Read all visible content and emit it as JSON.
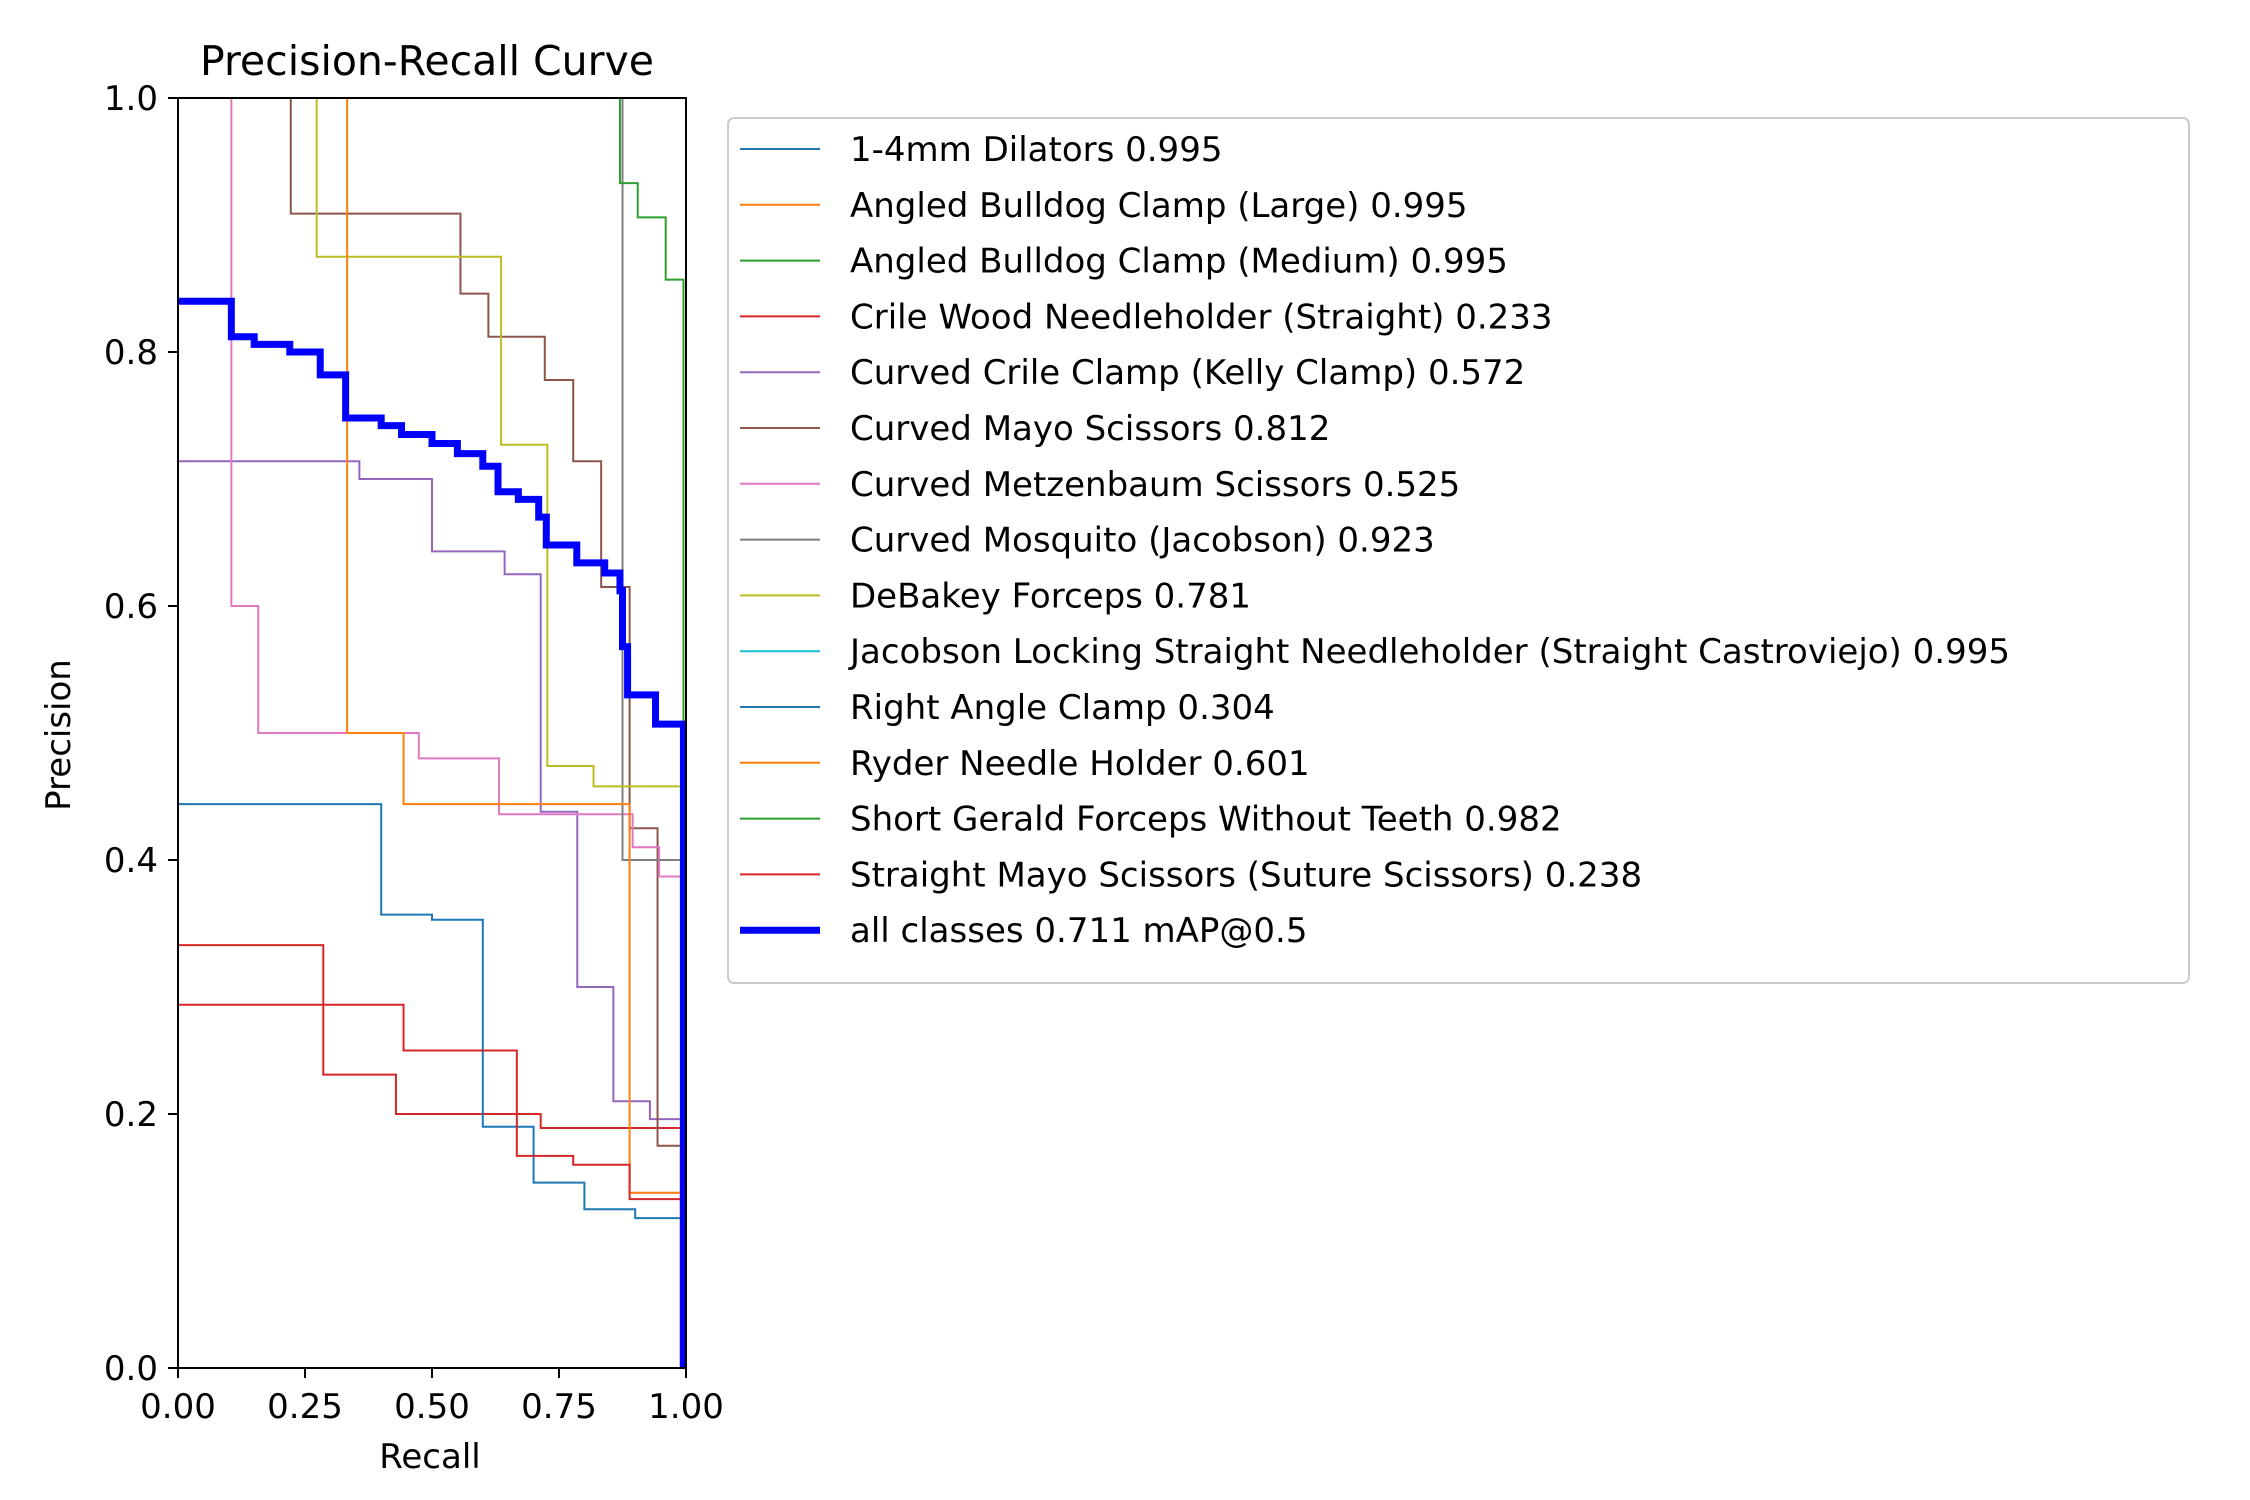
{
  "chart_data": {
    "type": "line",
    "title": "Precision-Recall Curve",
    "xlabel": "Recall",
    "ylabel": "Precision",
    "xlim": [
      0,
      1
    ],
    "ylim": [
      0,
      1
    ],
    "xticks": [
      "0.00",
      "0.25",
      "0.50",
      "0.75",
      "1.00"
    ],
    "yticks": [
      "0.0",
      "0.2",
      "0.4",
      "0.6",
      "0.8",
      "1.0"
    ],
    "grid": false,
    "legend_position": "outside-right",
    "series": [
      {
        "name": "1-4mm Dilators 0.995",
        "color": "#1f77b4",
        "width": 2,
        "points": [
          [
            1,
            1
          ],
          [
            1,
            0
          ]
        ]
      },
      {
        "name": "Angled Bulldog Clamp (Large) 0.995",
        "color": "#ff7f0e",
        "width": 2,
        "points": [
          [
            0,
            1
          ],
          [
            1,
            1
          ],
          [
            1,
            0
          ]
        ]
      },
      {
        "name": "Angled Bulldog Clamp (Medium) 0.995",
        "color": "#2ca02c",
        "width": 2,
        "points": [
          [
            0,
            1
          ],
          [
            1,
            1
          ],
          [
            1,
            0
          ]
        ]
      },
      {
        "name": "Crile Wood Needleholder (Straight) 0.233",
        "color": "#d62728",
        "width": 2,
        "points": [
          [
            0,
            0.333
          ],
          [
            0.286,
            0.333
          ],
          [
            0.286,
            0.231
          ],
          [
            0.429,
            0.231
          ],
          [
            0.429,
            0.2
          ],
          [
            0.714,
            0.2
          ],
          [
            0.714,
            0.189
          ],
          [
            0.99,
            0.189
          ],
          [
            0.99,
            0
          ]
        ]
      },
      {
        "name": "Curved Crile Clamp (Kelly Clamp) 0.572",
        "color": "#9467bd",
        "width": 2,
        "points": [
          [
            0,
            0.714
          ],
          [
            0.357,
            0.714
          ],
          [
            0.357,
            0.7
          ],
          [
            0.5,
            0.7
          ],
          [
            0.5,
            0.643
          ],
          [
            0.643,
            0.643
          ],
          [
            0.643,
            0.625
          ],
          [
            0.714,
            0.625
          ],
          [
            0.714,
            0.438
          ],
          [
            0.786,
            0.438
          ],
          [
            0.786,
            0.3
          ],
          [
            0.857,
            0.3
          ],
          [
            0.857,
            0.21
          ],
          [
            0.929,
            0.21
          ],
          [
            0.929,
            0.196
          ],
          [
            0.99,
            0.196
          ],
          [
            0.99,
            0
          ]
        ]
      },
      {
        "name": "Curved Mayo Scissors 0.812",
        "color": "#8c564b",
        "width": 2,
        "points": [
          [
            0.222,
            1
          ],
          [
            0.222,
            0.909
          ],
          [
            0.556,
            0.909
          ],
          [
            0.556,
            0.846
          ],
          [
            0.611,
            0.846
          ],
          [
            0.611,
            0.812
          ],
          [
            0.722,
            0.812
          ],
          [
            0.722,
            0.778
          ],
          [
            0.778,
            0.778
          ],
          [
            0.778,
            0.714
          ],
          [
            0.833,
            0.714
          ],
          [
            0.833,
            0.615
          ],
          [
            0.889,
            0.615
          ],
          [
            0.889,
            0.425
          ],
          [
            0.944,
            0.425
          ],
          [
            0.944,
            0.175
          ],
          [
            0.99,
            0.175
          ],
          [
            0.99,
            0
          ]
        ]
      },
      {
        "name": "Curved Metzenbaum Scissors 0.525",
        "color": "#e377c2",
        "width": 2,
        "points": [
          [
            0.105,
            1
          ],
          [
            0.105,
            0.6
          ],
          [
            0.158,
            0.6
          ],
          [
            0.158,
            0.5
          ],
          [
            0.474,
            0.5
          ],
          [
            0.474,
            0.48
          ],
          [
            0.632,
            0.48
          ],
          [
            0.632,
            0.436
          ],
          [
            0.895,
            0.436
          ],
          [
            0.895,
            0.41
          ],
          [
            0.947,
            0.41
          ],
          [
            0.947,
            0.387
          ],
          [
            0.99,
            0.387
          ],
          [
            0.99,
            0
          ]
        ]
      },
      {
        "name": "Curved Mosquito (Jacobson) 0.923",
        "color": "#7f7f7f",
        "width": 2,
        "points": [
          [
            0.875,
            1
          ],
          [
            0.875,
            0.4
          ],
          [
            0.99,
            0.4
          ],
          [
            0.99,
            0
          ]
        ]
      },
      {
        "name": "DeBakey Forceps 0.781",
        "color": "#bcbd22",
        "width": 2,
        "points": [
          [
            0.273,
            1
          ],
          [
            0.273,
            0.875
          ],
          [
            0.636,
            0.875
          ],
          [
            0.636,
            0.727
          ],
          [
            0.727,
            0.727
          ],
          [
            0.727,
            0.474
          ],
          [
            0.818,
            0.474
          ],
          [
            0.818,
            0.458
          ],
          [
            0.99,
            0.458
          ],
          [
            0.99,
            0
          ]
        ]
      },
      {
        "name": "Jacobson Locking Straight Needleholder (Straight Castroviejo) 0.995",
        "color": "#17becf",
        "width": 2,
        "points": [
          [
            0,
            1
          ],
          [
            1,
            1
          ],
          [
            1,
            0
          ]
        ]
      },
      {
        "name": "Right Angle Clamp 0.304",
        "color": "#1f77b4",
        "width": 2,
        "points": [
          [
            0,
            0.444
          ],
          [
            0.4,
            0.444
          ],
          [
            0.4,
            0.357
          ],
          [
            0.5,
            0.357
          ],
          [
            0.5,
            0.353
          ],
          [
            0.6,
            0.353
          ],
          [
            0.6,
            0.19
          ],
          [
            0.7,
            0.19
          ],
          [
            0.7,
            0.146
          ],
          [
            0.8,
            0.146
          ],
          [
            0.8,
            0.125
          ],
          [
            0.9,
            0.125
          ],
          [
            0.9,
            0.118
          ],
          [
            0.99,
            0.118
          ],
          [
            0.99,
            0
          ]
        ]
      },
      {
        "name": "Ryder Needle Holder 0.601",
        "color": "#ff7f0e",
        "width": 2,
        "points": [
          [
            0.333,
            1
          ],
          [
            0.333,
            0.5
          ],
          [
            0.444,
            0.5
          ],
          [
            0.444,
            0.444
          ],
          [
            0.889,
            0.444
          ],
          [
            0.889,
            0.138
          ],
          [
            0.99,
            0.138
          ],
          [
            0.99,
            0
          ]
        ]
      },
      {
        "name": "Short Gerald Forceps Without Teeth 0.982",
        "color": "#2ca02c",
        "width": 2,
        "points": [
          [
            0.87,
            1
          ],
          [
            0.87,
            0.933
          ],
          [
            0.905,
            0.933
          ],
          [
            0.905,
            0.906
          ],
          [
            0.96,
            0.906
          ],
          [
            0.96,
            0.857
          ],
          [
            0.995,
            0.857
          ],
          [
            0.995,
            0
          ]
        ]
      },
      {
        "name": "Straight Mayo Scissors (Suture Scissors) 0.238",
        "color": "#d62728",
        "width": 2,
        "points": [
          [
            0,
            0.286
          ],
          [
            0.444,
            0.286
          ],
          [
            0.444,
            0.25
          ],
          [
            0.667,
            0.25
          ],
          [
            0.667,
            0.167
          ],
          [
            0.778,
            0.167
          ],
          [
            0.778,
            0.16
          ],
          [
            0.889,
            0.16
          ],
          [
            0.889,
            0.133
          ],
          [
            0.99,
            0.133
          ],
          [
            0.99,
            0
          ]
        ]
      },
      {
        "name": "all classes 0.711 mAP@0.5",
        "color": "#0000ff",
        "width": 7,
        "points": [
          [
            0,
            0.84
          ],
          [
            0.105,
            0.84
          ],
          [
            0.105,
            0.812
          ],
          [
            0.15,
            0.812
          ],
          [
            0.15,
            0.806
          ],
          [
            0.22,
            0.806
          ],
          [
            0.22,
            0.8
          ],
          [
            0.28,
            0.8
          ],
          [
            0.28,
            0.782
          ],
          [
            0.33,
            0.782
          ],
          [
            0.33,
            0.748
          ],
          [
            0.4,
            0.748
          ],
          [
            0.4,
            0.742
          ],
          [
            0.44,
            0.742
          ],
          [
            0.44,
            0.735
          ],
          [
            0.5,
            0.735
          ],
          [
            0.5,
            0.728
          ],
          [
            0.55,
            0.728
          ],
          [
            0.55,
            0.72
          ],
          [
            0.6,
            0.72
          ],
          [
            0.6,
            0.71
          ],
          [
            0.63,
            0.71
          ],
          [
            0.63,
            0.69
          ],
          [
            0.67,
            0.69
          ],
          [
            0.67,
            0.684
          ],
          [
            0.71,
            0.684
          ],
          [
            0.71,
            0.67
          ],
          [
            0.725,
            0.67
          ],
          [
            0.725,
            0.648
          ],
          [
            0.785,
            0.648
          ],
          [
            0.785,
            0.634
          ],
          [
            0.84,
            0.634
          ],
          [
            0.84,
            0.626
          ],
          [
            0.87,
            0.626
          ],
          [
            0.87,
            0.612
          ],
          [
            0.875,
            0.612
          ],
          [
            0.875,
            0.568
          ],
          [
            0.885,
            0.568
          ],
          [
            0.885,
            0.53
          ],
          [
            0.94,
            0.53
          ],
          [
            0.94,
            0.507
          ],
          [
            0.995,
            0.507
          ],
          [
            0.995,
            0
          ]
        ]
      }
    ]
  }
}
